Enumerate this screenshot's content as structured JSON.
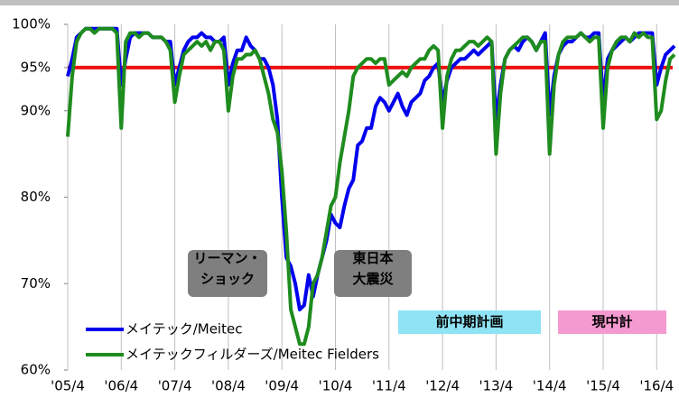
{
  "chart_data": {
    "type": "line",
    "categories": [
      "'05/4",
      null,
      null,
      null,
      null,
      null,
      null,
      null,
      null,
      null,
      null,
      null,
      "'06/4",
      null,
      null,
      null,
      null,
      null,
      null,
      null,
      null,
      null,
      null,
      null,
      "'07/4",
      null,
      null,
      null,
      null,
      null,
      null,
      null,
      null,
      null,
      null,
      null,
      "'08/4",
      null,
      null,
      null,
      null,
      null,
      null,
      null,
      null,
      null,
      null,
      null,
      "'09/4",
      null,
      null,
      null,
      null,
      null,
      null,
      null,
      null,
      null,
      null,
      null,
      "'10/4",
      null,
      null,
      null,
      null,
      null,
      null,
      null,
      null,
      null,
      null,
      null,
      "'11/4",
      null,
      null,
      null,
      null,
      null,
      null,
      null,
      null,
      null,
      null,
      null,
      "'12/4",
      null,
      null,
      null,
      null,
      null,
      null,
      null,
      null,
      null,
      null,
      null,
      "'13/4",
      null,
      null,
      null,
      null,
      null,
      null,
      null,
      null,
      null,
      null,
      null,
      "'14/4",
      null,
      null,
      null,
      null,
      null,
      null,
      null,
      null,
      null,
      null,
      null,
      "'15/4",
      null,
      null,
      null,
      null,
      null,
      null,
      null,
      null,
      null,
      null,
      null,
      "'16/4",
      null,
      null,
      null,
      null
    ],
    "series": [
      {
        "name": "メイテック/Meitec",
        "color": "#0000ee",
        "values": [
          94,
          96,
          98.5,
          99,
          99.5,
          99.5,
          99.5,
          99.5,
          99.5,
          99.5,
          99.5,
          99.5,
          93,
          96,
          98.5,
          99,
          99,
          99,
          99,
          98.5,
          98.5,
          98.5,
          98,
          98,
          93,
          95,
          97,
          98,
          98.5,
          98.5,
          99,
          98.5,
          98.5,
          98,
          98,
          98.5,
          93,
          95.5,
          97,
          97,
          98.5,
          97.5,
          97,
          96,
          96,
          95,
          93,
          89,
          80,
          73,
          72,
          70,
          67,
          67.5,
          71,
          68.5,
          71,
          73,
          75,
          78,
          77,
          76.5,
          79,
          81,
          82,
          86,
          86.5,
          88,
          88,
          90.5,
          91.5,
          91,
          90,
          91,
          92,
          90.5,
          89.5,
          91,
          91.5,
          92,
          93.5,
          94,
          95,
          95.5,
          91,
          93.5,
          95,
          95.5,
          96,
          96,
          96.5,
          97,
          96.5,
          97,
          97.5,
          98,
          89,
          93,
          96,
          97,
          97.5,
          97,
          98,
          98.5,
          98,
          97,
          98,
          99,
          89.5,
          94,
          96.5,
          97.5,
          98,
          98,
          98.5,
          99,
          98.5,
          98.5,
          99,
          99,
          91,
          96,
          97,
          97.5,
          98,
          98.5,
          98,
          98.5,
          99,
          99,
          99,
          99,
          93,
          95,
          96.5,
          97,
          97.5
        ]
      },
      {
        "name": "メイテックフィルダーズ/Meitec Fielders",
        "color": "#1e8c1e",
        "values": [
          87,
          94,
          98,
          99,
          99.5,
          99.5,
          99,
          99.5,
          99.5,
          99.5,
          99.5,
          99,
          88,
          98,
          99,
          99,
          98.5,
          99,
          99,
          98.5,
          98.5,
          98.5,
          98,
          97,
          91,
          94,
          96.5,
          97,
          97.5,
          98,
          97.5,
          98,
          97,
          98,
          98,
          97,
          90,
          94,
          96,
          96,
          96.5,
          96.5,
          97,
          96,
          94,
          92,
          89,
          87.5,
          83,
          76,
          67,
          65,
          63,
          63,
          65,
          70,
          71,
          73,
          76,
          79,
          80,
          84,
          87,
          90,
          94,
          95,
          95.5,
          96,
          96,
          95.5,
          96,
          96,
          93,
          93.5,
          94,
          94.5,
          94,
          95,
          95.5,
          96,
          96,
          97,
          97.5,
          97,
          88,
          94,
          96,
          97,
          97,
          97.5,
          98,
          98,
          97.5,
          98,
          98.5,
          98,
          85,
          92,
          96,
          97,
          97.5,
          98,
          98.5,
          98.5,
          98,
          97,
          98,
          98,
          85,
          93,
          96.5,
          98,
          98.5,
          98.5,
          98.5,
          99,
          98.5,
          98,
          98.5,
          98.5,
          88,
          95,
          97,
          98,
          98.5,
          98.5,
          98,
          99,
          98.5,
          99,
          98.5,
          98.5,
          89,
          90,
          93.5,
          96,
          96.5
        ]
      }
    ],
    "ylim": [
      60,
      100
    ],
    "yticks": [
      {
        "value": 60,
        "label": "60%"
      },
      {
        "value": 70,
        "label": "70%"
      },
      {
        "value": 80,
        "label": "80%"
      },
      {
        "value": 90,
        "label": "90%"
      },
      {
        "value": 95,
        "label": "95%"
      },
      {
        "value": 100,
        "label": "100%"
      }
    ],
    "reference_line": {
      "value": 95,
      "color": "#ee1111"
    },
    "annotations": [
      {
        "lines": [
          "リーマン・",
          "ショック"
        ]
      },
      {
        "lines": [
          "東日本",
          "大震災"
        ]
      },
      {
        "lines": [
          "前中期計画"
        ]
      },
      {
        "lines": [
          "現中計"
        ]
      }
    ]
  }
}
